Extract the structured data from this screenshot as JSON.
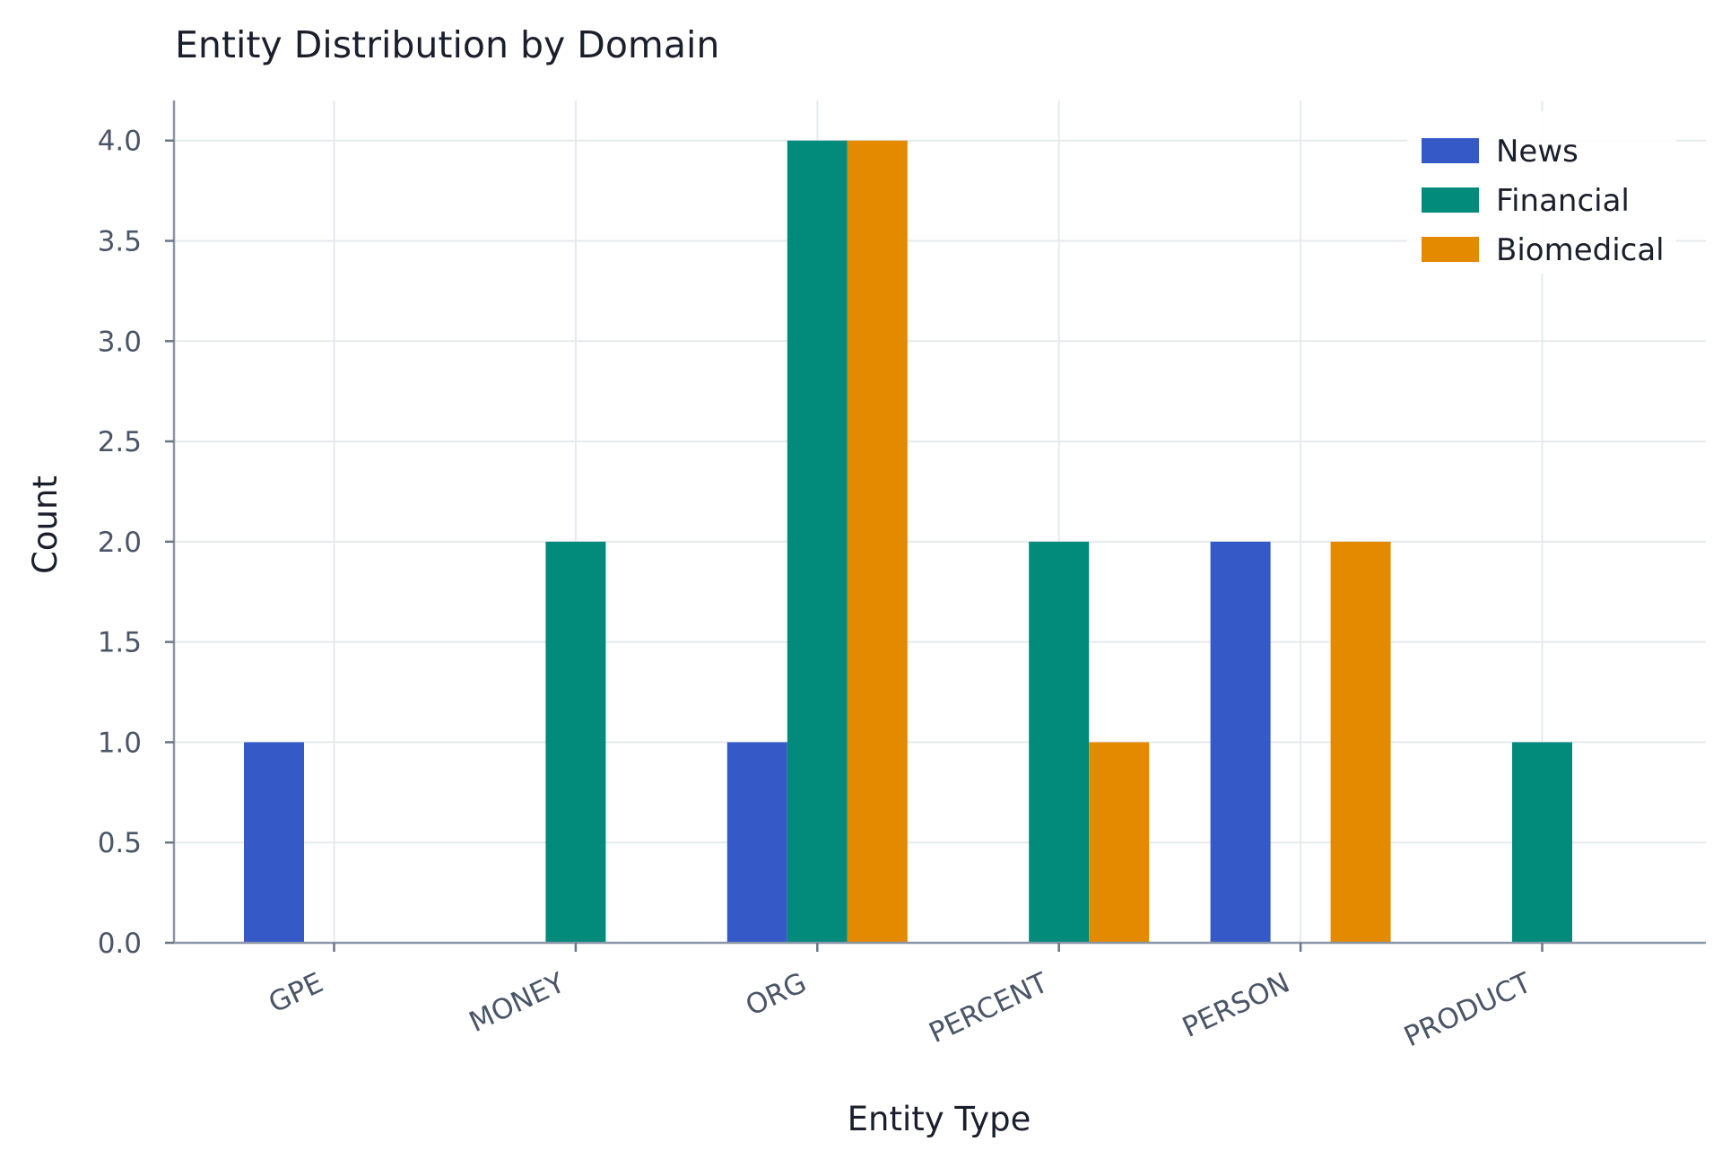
{
  "chart_data": {
    "type": "bar",
    "title": "Entity Distribution by Domain",
    "xlabel": "Entity Type",
    "ylabel": "Count",
    "categories": [
      "GPE",
      "MONEY",
      "ORG",
      "PERCENT",
      "PERSON",
      "PRODUCT"
    ],
    "series": [
      {
        "name": "News",
        "color": "#3659c8",
        "values": [
          1,
          0,
          1,
          0,
          2,
          0
        ]
      },
      {
        "name": "Financial",
        "color": "#028a7a",
        "values": [
          0,
          2,
          4,
          2,
          0,
          1
        ]
      },
      {
        "name": "Biomedical",
        "color": "#e38a00",
        "values": [
          0,
          0,
          4,
          1,
          2,
          0
        ]
      }
    ],
    "ylim": [
      0,
      4.2
    ],
    "yticks": [
      "0.0",
      "0.5",
      "1.0",
      "1.5",
      "2.0",
      "2.5",
      "3.0",
      "3.5",
      "4.0"
    ],
    "grid": true,
    "legend_position": "top-right"
  }
}
